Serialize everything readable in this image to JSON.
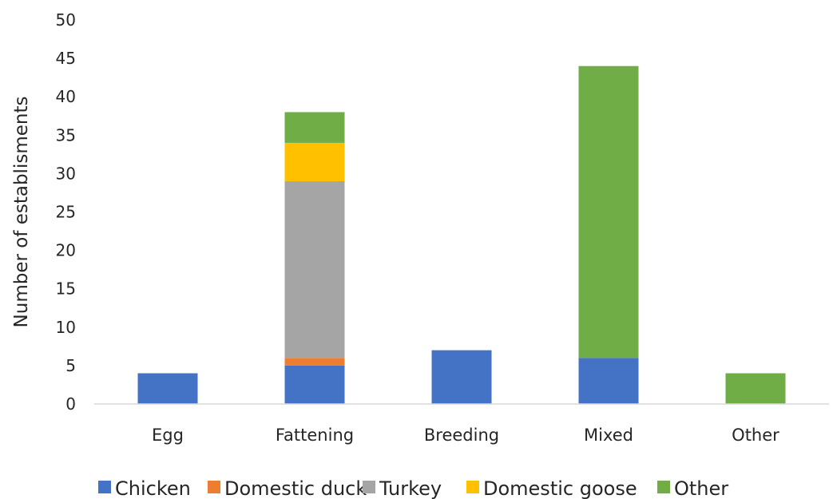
{
  "chart_data": {
    "type": "bar",
    "stacked": true,
    "title": "",
    "xlabel": "",
    "ylabel": "Number of establisments",
    "ylim": [
      0,
      50
    ],
    "yticks": [
      0,
      5,
      10,
      15,
      20,
      25,
      30,
      35,
      40,
      45,
      50
    ],
    "categories": [
      "Egg",
      "Fattening",
      "Breeding",
      "Mixed",
      "Other"
    ],
    "series": [
      {
        "name": "Chicken",
        "color": "#4472C4",
        "values": [
          4,
          5,
          7,
          6,
          0
        ]
      },
      {
        "name": "Domestic duck",
        "color": "#ED7D31",
        "values": [
          0,
          1,
          0,
          0,
          0
        ]
      },
      {
        "name": "Turkey",
        "color": "#A5A5A5",
        "values": [
          0,
          23,
          0,
          0,
          0
        ]
      },
      {
        "name": "Domestic goose",
        "color": "#FFC000",
        "values": [
          0,
          5,
          0,
          0,
          0
        ]
      },
      {
        "name": "Other",
        "color": "#70AD47",
        "values": [
          0,
          4,
          0,
          38,
          4
        ]
      }
    ],
    "grid": false,
    "legend_position": "bottom"
  }
}
